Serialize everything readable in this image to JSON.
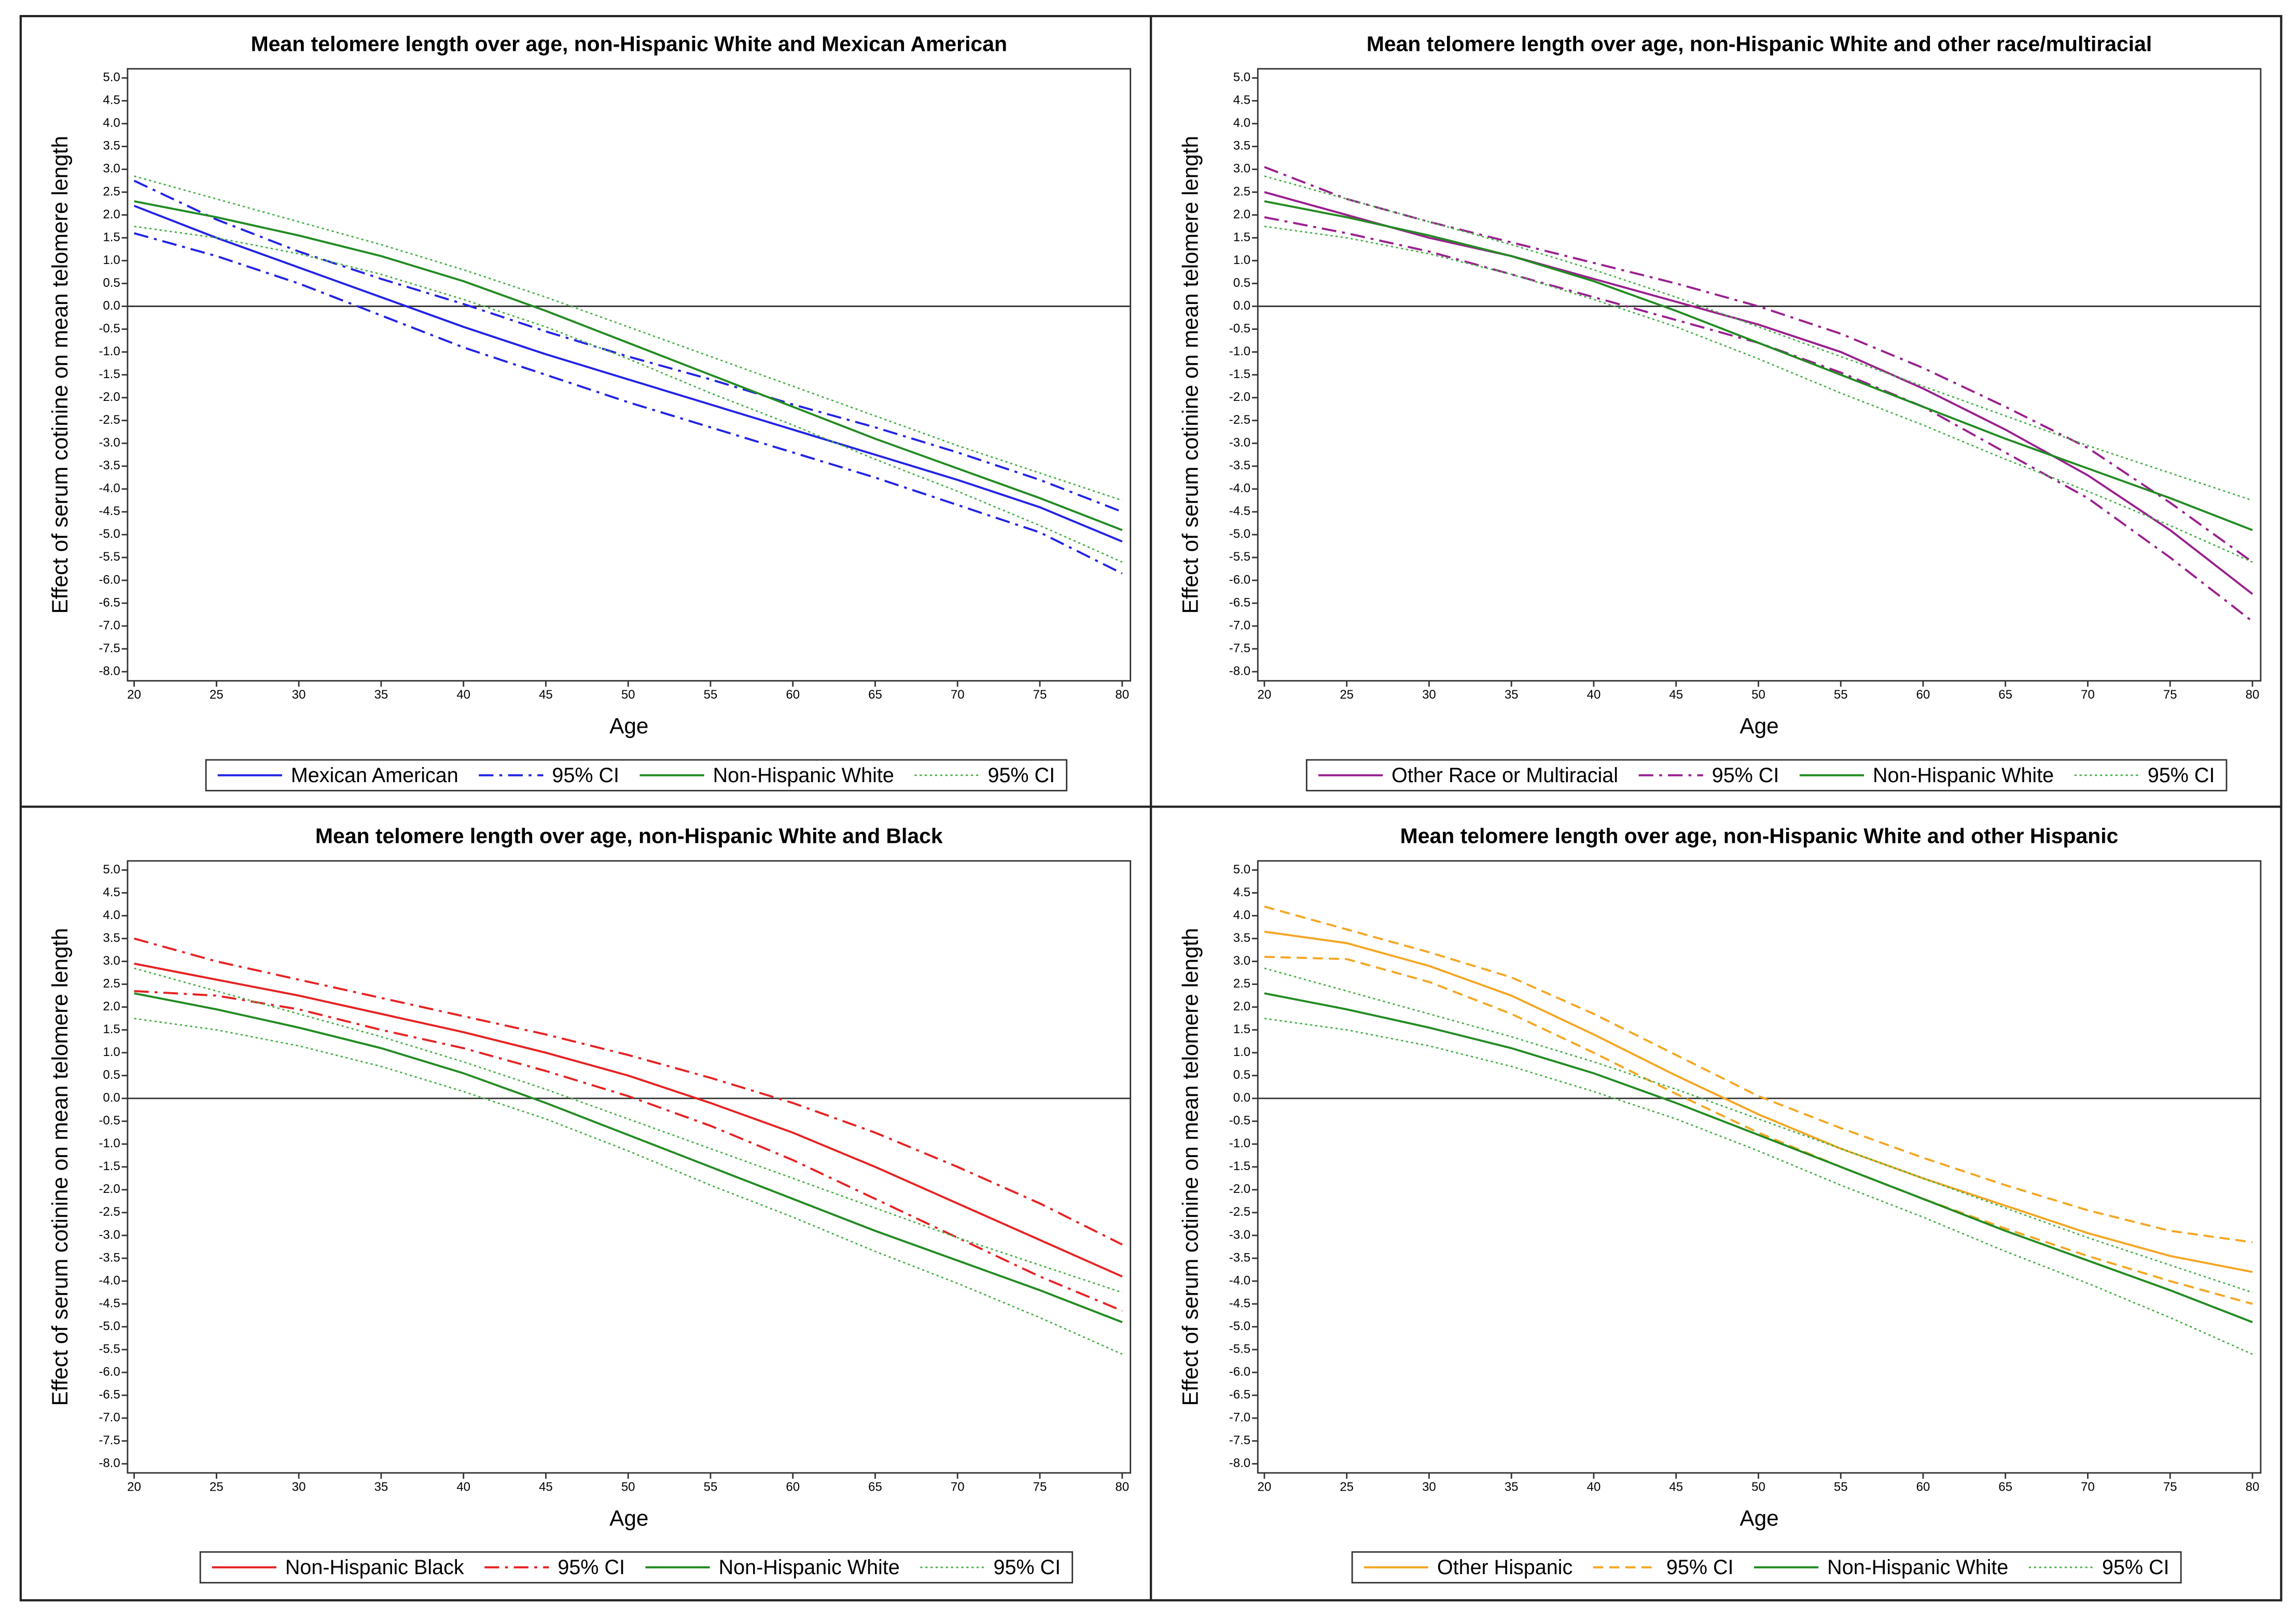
{
  "chart_data": [
    {
      "type": "line",
      "title": "Mean telomere length over age, non-Hispanic White and Mexican American",
      "x_label": "Age",
      "y_label": "Effect of serum cotinine on mean telomere length",
      "x": [
        20,
        25,
        30,
        35,
        40,
        45,
        50,
        55,
        60,
        65,
        70,
        75,
        80
      ],
      "xlim": [
        19.6,
        80.5
      ],
      "xticks": [
        20,
        25,
        30,
        35,
        40,
        45,
        50,
        55,
        60,
        65,
        70,
        75,
        80
      ],
      "ylim": [
        -8.2,
        5.2
      ],
      "yticks": [
        {
          "value": -8,
          "label": "-8.0"
        },
        {
          "value": -7.5,
          "label": "-7.5"
        },
        {
          "value": -7,
          "label": "-7.0"
        },
        {
          "value": -6.5,
          "label": "-6.5"
        },
        {
          "value": -6,
          "label": "-6.0"
        },
        {
          "value": -5.5,
          "label": "-5.5"
        },
        {
          "value": -5,
          "label": "-5.0"
        },
        {
          "value": -4.5,
          "label": "-4.5"
        },
        {
          "value": -4,
          "label": "-4.0"
        },
        {
          "value": -3.5,
          "label": "-3.5"
        },
        {
          "value": -3,
          "label": "-3.0"
        },
        {
          "value": -2.5,
          "label": "-2.5"
        },
        {
          "value": -2,
          "label": "-2.0"
        },
        {
          "value": -1.5,
          "label": "-1.5"
        },
        {
          "value": -1,
          "label": "-1.0"
        },
        {
          "value": -0.5,
          "label": "-0.5"
        },
        {
          "value": 0,
          "label": "0.0"
        },
        {
          "value": 0.5,
          "label": "0.5"
        },
        {
          "value": 1,
          "label": "1.0"
        },
        {
          "value": 1.5,
          "label": "1.5"
        },
        {
          "value": 2,
          "label": "2.0"
        },
        {
          "value": 2.5,
          "label": "2.5"
        },
        {
          "value": 3,
          "label": "3.0"
        },
        {
          "value": 3.5,
          "label": "3.5"
        },
        {
          "value": 4,
          "label": "4.0"
        },
        {
          "value": 4.5,
          "label": "4.5"
        },
        {
          "value": 5,
          "label": "5.0"
        }
      ],
      "series": [
        {
          "name": "Mexican American",
          "color": "#2222e6",
          "dash": "solid",
          "values": [
            2.2,
            1.5,
            0.85,
            0.2,
            -0.45,
            -1.05,
            -1.6,
            -2.15,
            -2.7,
            -3.25,
            -3.8,
            -4.4,
            -5.15
          ]
        },
        {
          "name": "95% CI",
          "color": "#2222e6",
          "dash": "dashdot",
          "lower": [
            1.6,
            1.1,
            0.5,
            -0.2,
            -0.9,
            -1.5,
            -2.1,
            -2.65,
            -3.2,
            -3.75,
            -4.35,
            -4.95,
            -5.85
          ],
          "upper": [
            2.75,
            1.9,
            1.2,
            0.6,
            0.05,
            -0.55,
            -1.1,
            -1.6,
            -2.15,
            -2.65,
            -3.2,
            -3.8,
            -4.5
          ]
        },
        {
          "name": "Non-Hispanic White",
          "color": "#228b22",
          "dash": "solid",
          "values": [
            2.3,
            1.95,
            1.55,
            1.1,
            0.55,
            -0.1,
            -0.8,
            -1.5,
            -2.2,
            -2.9,
            -3.55,
            -4.2,
            -4.9
          ]
        },
        {
          "name": "95% CI",
          "color": "#44b044",
          "dash": "dot",
          "lower": [
            1.75,
            1.5,
            1.15,
            0.7,
            0.15,
            -0.45,
            -1.15,
            -1.9,
            -2.6,
            -3.35,
            -4.05,
            -4.8,
            -5.6
          ],
          "upper": [
            2.85,
            2.35,
            1.85,
            1.35,
            0.8,
            0.2,
            -0.45,
            -1.1,
            -1.75,
            -2.4,
            -3.05,
            -3.65,
            -4.25
          ]
        }
      ]
    },
    {
      "type": "line",
      "title": "Mean telomere length over age, non-Hispanic White and other race/multiracial",
      "x_label": "Age",
      "y_label": "Effect of serum cotinine on mean telomere length",
      "x": [
        20,
        25,
        30,
        35,
        40,
        45,
        50,
        55,
        60,
        65,
        70,
        75,
        80
      ],
      "xlim": [
        19.6,
        80.5
      ],
      "xticks": [
        20,
        25,
        30,
        35,
        40,
        45,
        50,
        55,
        60,
        65,
        70,
        75,
        80
      ],
      "ylim": [
        -8.2,
        5.2
      ],
      "yticks": [
        {
          "value": -8,
          "label": "-8.0"
        },
        {
          "value": -7.5,
          "label": "-7.5"
        },
        {
          "value": -7,
          "label": "-7.0"
        },
        {
          "value": -6.5,
          "label": "-6.5"
        },
        {
          "value": -6,
          "label": "-6.0"
        },
        {
          "value": -5.5,
          "label": "-5.5"
        },
        {
          "value": -5,
          "label": "-5.0"
        },
        {
          "value": -4.5,
          "label": "-4.5"
        },
        {
          "value": -4,
          "label": "-4.0"
        },
        {
          "value": -3.5,
          "label": "-3.5"
        },
        {
          "value": -3,
          "label": "-3.0"
        },
        {
          "value": -2.5,
          "label": "-2.5"
        },
        {
          "value": -2,
          "label": "-2.0"
        },
        {
          "value": -1.5,
          "label": "-1.5"
        },
        {
          "value": -1,
          "label": "-1.0"
        },
        {
          "value": -0.5,
          "label": "-0.5"
        },
        {
          "value": 0,
          "label": "0.0"
        },
        {
          "value": 0.5,
          "label": "0.5"
        },
        {
          "value": 1,
          "label": "1.0"
        },
        {
          "value": 1.5,
          "label": "1.5"
        },
        {
          "value": 2,
          "label": "2.0"
        },
        {
          "value": 2.5,
          "label": "2.5"
        },
        {
          "value": 3,
          "label": "3.0"
        },
        {
          "value": 3.5,
          "label": "3.5"
        },
        {
          "value": 4,
          "label": "4.0"
        },
        {
          "value": 4.5,
          "label": "4.5"
        },
        {
          "value": 5,
          "label": "5.0"
        }
      ],
      "series": [
        {
          "name": "Other Race or Multiracial",
          "color": "#9a1f8f",
          "dash": "solid",
          "values": [
            2.5,
            2.0,
            1.5,
            1.1,
            0.6,
            0.1,
            -0.4,
            -1.0,
            -1.8,
            -2.7,
            -3.7,
            -4.9,
            -6.3
          ]
        },
        {
          "name": "95% CI",
          "color": "#9a1f8f",
          "dash": "dashdot",
          "lower": [
            1.95,
            1.6,
            1.2,
            0.7,
            0.2,
            -0.3,
            -0.8,
            -1.45,
            -2.2,
            -3.2,
            -4.2,
            -5.5,
            -6.9
          ],
          "upper": [
            3.05,
            2.35,
            1.85,
            1.4,
            0.95,
            0.5,
            0.0,
            -0.6,
            -1.35,
            -2.2,
            -3.1,
            -4.3,
            -5.6
          ]
        },
        {
          "name": "Non-Hispanic White",
          "color": "#228b22",
          "dash": "solid",
          "values": [
            2.3,
            1.95,
            1.55,
            1.1,
            0.55,
            -0.1,
            -0.8,
            -1.5,
            -2.2,
            -2.9,
            -3.55,
            -4.2,
            -4.9
          ]
        },
        {
          "name": "95% CI",
          "color": "#44b044",
          "dash": "dot",
          "lower": [
            1.75,
            1.5,
            1.15,
            0.7,
            0.15,
            -0.45,
            -1.15,
            -1.9,
            -2.6,
            -3.35,
            -4.05,
            -4.8,
            -5.6
          ],
          "upper": [
            2.85,
            2.35,
            1.85,
            1.35,
            0.8,
            0.2,
            -0.45,
            -1.1,
            -1.75,
            -2.4,
            -3.05,
            -3.65,
            -4.25
          ]
        }
      ]
    },
    {
      "type": "line",
      "title": "Mean telomere length over age, non-Hispanic White and Black",
      "x_label": "Age",
      "y_label": "Effect of serum cotinine on mean telomere length",
      "x": [
        20,
        25,
        30,
        35,
        40,
        45,
        50,
        55,
        60,
        65,
        70,
        75,
        80
      ],
      "xlim": [
        19.6,
        80.5
      ],
      "xticks": [
        20,
        25,
        30,
        35,
        40,
        45,
        50,
        55,
        60,
        65,
        70,
        75,
        80
      ],
      "ylim": [
        -8.2,
        5.2
      ],
      "yticks": [
        {
          "value": -8,
          "label": "-8.0"
        },
        {
          "value": -7.5,
          "label": "-7.5"
        },
        {
          "value": -7,
          "label": "-7.0"
        },
        {
          "value": -6.5,
          "label": "-6.5"
        },
        {
          "value": -6,
          "label": "-6.0"
        },
        {
          "value": -5.5,
          "label": "-5.5"
        },
        {
          "value": -5,
          "label": "-5.0"
        },
        {
          "value": -4.5,
          "label": "-4.5"
        },
        {
          "value": -4,
          "label": "-4.0"
        },
        {
          "value": -3.5,
          "label": "-3.5"
        },
        {
          "value": -3,
          "label": "-3.0"
        },
        {
          "value": -2.5,
          "label": "-2.5"
        },
        {
          "value": -2,
          "label": "-2.0"
        },
        {
          "value": -1.5,
          "label": "-1.5"
        },
        {
          "value": -1,
          "label": "-1.0"
        },
        {
          "value": -0.5,
          "label": "-0.5"
        },
        {
          "value": 0,
          "label": "0.0"
        },
        {
          "value": 0.5,
          "label": "0.5"
        },
        {
          "value": 1,
          "label": "1.0"
        },
        {
          "value": 1.5,
          "label": "1.5"
        },
        {
          "value": 2,
          "label": "2.0"
        },
        {
          "value": 2.5,
          "label": "2.5"
        },
        {
          "value": 3,
          "label": "3.0"
        },
        {
          "value": 3.5,
          "label": "3.5"
        },
        {
          "value": 4,
          "label": "4.0"
        },
        {
          "value": 4.5,
          "label": "4.5"
        },
        {
          "value": 5,
          "label": "5.0"
        }
      ],
      "series": [
        {
          "name": "Non-Hispanic Black",
          "color": "#e62222",
          "dash": "solid",
          "values": [
            2.95,
            2.6,
            2.25,
            1.85,
            1.45,
            1.0,
            0.5,
            -0.1,
            -0.75,
            -1.5,
            -2.3,
            -3.1,
            -3.9
          ]
        },
        {
          "name": "95% CI",
          "color": "#e62222",
          "dash": "dashdot",
          "lower": [
            2.35,
            2.25,
            1.95,
            1.5,
            1.1,
            0.6,
            0.05,
            -0.6,
            -1.35,
            -2.2,
            -3.05,
            -3.9,
            -4.65
          ],
          "upper": [
            3.5,
            3.0,
            2.6,
            2.2,
            1.8,
            1.4,
            0.95,
            0.45,
            -0.1,
            -0.75,
            -1.5,
            -2.3,
            -3.2
          ]
        },
        {
          "name": "Non-Hispanic White",
          "color": "#228b22",
          "dash": "solid",
          "values": [
            2.3,
            1.95,
            1.55,
            1.1,
            0.55,
            -0.1,
            -0.8,
            -1.5,
            -2.2,
            -2.9,
            -3.55,
            -4.2,
            -4.9
          ]
        },
        {
          "name": "95% CI",
          "color": "#44b044",
          "dash": "dot",
          "lower": [
            1.75,
            1.5,
            1.15,
            0.7,
            0.15,
            -0.45,
            -1.15,
            -1.9,
            -2.6,
            -3.35,
            -4.05,
            -4.8,
            -5.6
          ],
          "upper": [
            2.85,
            2.35,
            1.85,
            1.35,
            0.8,
            0.2,
            -0.45,
            -1.1,
            -1.75,
            -2.4,
            -3.05,
            -3.65,
            -4.25
          ]
        }
      ]
    },
    {
      "type": "line",
      "title": "Mean telomere length over age, non-Hispanic White and other Hispanic",
      "x_label": "Age",
      "y_label": "Effect of serum cotinine on mean telomere length",
      "x": [
        20,
        25,
        30,
        35,
        40,
        45,
        50,
        55,
        60,
        65,
        70,
        75,
        80
      ],
      "xlim": [
        19.6,
        80.5
      ],
      "xticks": [
        20,
        25,
        30,
        35,
        40,
        45,
        50,
        55,
        60,
        65,
        70,
        75,
        80
      ],
      "ylim": [
        -8.2,
        5.2
      ],
      "yticks": [
        {
          "value": -8,
          "label": "-8.0"
        },
        {
          "value": -7.5,
          "label": "-7.5"
        },
        {
          "value": -7,
          "label": "-7.0"
        },
        {
          "value": -6.5,
          "label": "-6.5"
        },
        {
          "value": -6,
          "label": "-6.0"
        },
        {
          "value": -5.5,
          "label": "-5.5"
        },
        {
          "value": -5,
          "label": "-5.0"
        },
        {
          "value": -4.5,
          "label": "-4.5"
        },
        {
          "value": -4,
          "label": "-4.0"
        },
        {
          "value": -3.5,
          "label": "-3.5"
        },
        {
          "value": -3,
          "label": "-3.0"
        },
        {
          "value": -2.5,
          "label": "-2.5"
        },
        {
          "value": -2,
          "label": "-2.0"
        },
        {
          "value": -1.5,
          "label": "-1.5"
        },
        {
          "value": -1,
          "label": "-1.0"
        },
        {
          "value": -0.5,
          "label": "-0.5"
        },
        {
          "value": 0,
          "label": "0.0"
        },
        {
          "value": 0.5,
          "label": "0.5"
        },
        {
          "value": 1,
          "label": "1.0"
        },
        {
          "value": 1.5,
          "label": "1.5"
        },
        {
          "value": 2,
          "label": "2.0"
        },
        {
          "value": 2.5,
          "label": "2.5"
        },
        {
          "value": 3,
          "label": "3.0"
        },
        {
          "value": 3.5,
          "label": "3.5"
        },
        {
          "value": 4,
          "label": "4.0"
        },
        {
          "value": 4.5,
          "label": "4.5"
        },
        {
          "value": 5,
          "label": "5.0"
        }
      ],
      "series": [
        {
          "name": "Other Hispanic",
          "color": "#f5a623",
          "dash": "solid",
          "values": [
            3.65,
            3.4,
            2.9,
            2.25,
            1.4,
            0.5,
            -0.35,
            -1.1,
            -1.75,
            -2.35,
            -2.95,
            -3.45,
            -3.8
          ]
        },
        {
          "name": "95% CI",
          "color": "#f5a623",
          "dash": "dash",
          "lower": [
            3.1,
            3.05,
            2.55,
            1.85,
            1.0,
            0.1,
            -0.75,
            -1.5,
            -2.2,
            -2.85,
            -3.45,
            -4.0,
            -4.5
          ],
          "upper": [
            4.2,
            3.7,
            3.2,
            2.65,
            1.85,
            0.95,
            0.05,
            -0.65,
            -1.3,
            -1.9,
            -2.45,
            -2.9,
            -3.15
          ]
        },
        {
          "name": "Non-Hispanic White",
          "color": "#228b22",
          "dash": "solid",
          "values": [
            2.3,
            1.95,
            1.55,
            1.1,
            0.55,
            -0.1,
            -0.8,
            -1.5,
            -2.2,
            -2.9,
            -3.55,
            -4.2,
            -4.9
          ]
        },
        {
          "name": "95% CI",
          "color": "#44b044",
          "dash": "dot",
          "lower": [
            1.75,
            1.5,
            1.15,
            0.7,
            0.15,
            -0.45,
            -1.15,
            -1.9,
            -2.6,
            -3.35,
            -4.05,
            -4.8,
            -5.6
          ],
          "upper": [
            2.85,
            2.35,
            1.85,
            1.35,
            0.8,
            0.2,
            -0.45,
            -1.1,
            -1.75,
            -2.4,
            -3.05,
            -3.65,
            -4.25
          ]
        }
      ]
    }
  ]
}
